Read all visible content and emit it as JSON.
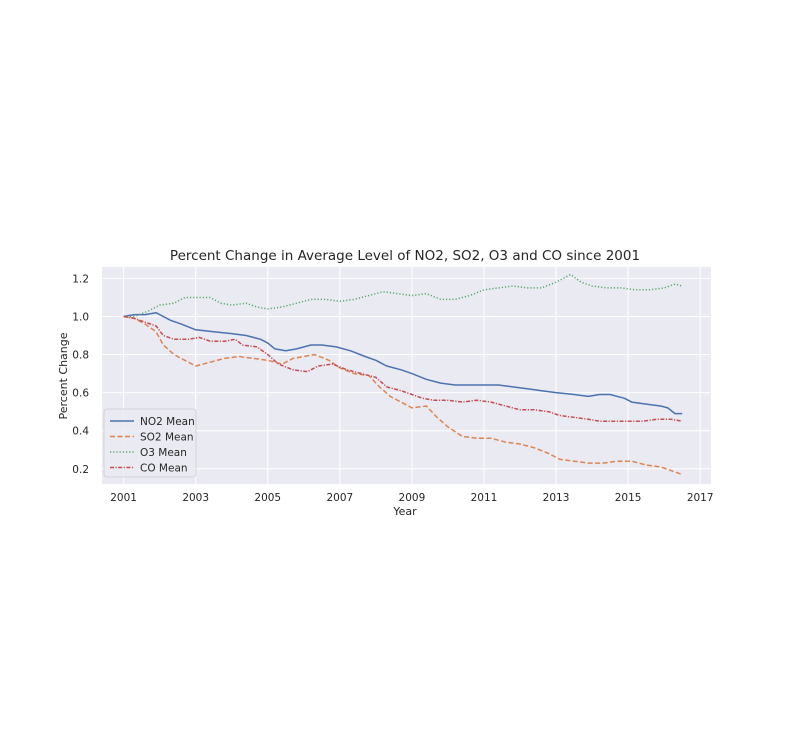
{
  "chart_data": {
    "type": "line",
    "title": "Percent Change in Average Level of NO2, SO2, O3 and CO since 2001",
    "xlabel": "Year",
    "ylabel": "Percent Change",
    "xlim": [
      2000.4,
      2017.3
    ],
    "ylim": [
      0.12,
      1.26
    ],
    "xticks": [
      "2001",
      "2003",
      "2005",
      "2007",
      "2009",
      "2011",
      "2013",
      "2015",
      "2017"
    ],
    "yticks": [
      "0.2",
      "0.4",
      "0.6",
      "0.8",
      "1.0",
      "1.2"
    ],
    "grid": true,
    "legend_position": "lower-left",
    "series": [
      {
        "name": "NO2 Mean",
        "color": "#4c72b0",
        "dash": "solid",
        "points": [
          [
            2001.0,
            1.0
          ],
          [
            2001.3,
            1.01
          ],
          [
            2001.6,
            1.01
          ],
          [
            2001.9,
            1.02
          ],
          [
            2002.1,
            1.0
          ],
          [
            2002.3,
            0.98
          ],
          [
            2002.6,
            0.96
          ],
          [
            2003.0,
            0.93
          ],
          [
            2003.5,
            0.92
          ],
          [
            2004.0,
            0.91
          ],
          [
            2004.4,
            0.9
          ],
          [
            2004.8,
            0.88
          ],
          [
            2005.0,
            0.86
          ],
          [
            2005.2,
            0.83
          ],
          [
            2005.5,
            0.82
          ],
          [
            2005.8,
            0.83
          ],
          [
            2006.2,
            0.85
          ],
          [
            2006.5,
            0.85
          ],
          [
            2006.9,
            0.84
          ],
          [
            2007.3,
            0.82
          ],
          [
            2007.7,
            0.79
          ],
          [
            2008.0,
            0.77
          ],
          [
            2008.3,
            0.74
          ],
          [
            2008.7,
            0.72
          ],
          [
            2009.0,
            0.7
          ],
          [
            2009.4,
            0.67
          ],
          [
            2009.8,
            0.65
          ],
          [
            2010.2,
            0.64
          ],
          [
            2010.6,
            0.64
          ],
          [
            2011.0,
            0.64
          ],
          [
            2011.4,
            0.64
          ],
          [
            2011.8,
            0.63
          ],
          [
            2012.2,
            0.62
          ],
          [
            2012.6,
            0.61
          ],
          [
            2013.0,
            0.6
          ],
          [
            2013.5,
            0.59
          ],
          [
            2013.9,
            0.58
          ],
          [
            2014.2,
            0.59
          ],
          [
            2014.5,
            0.59
          ],
          [
            2014.9,
            0.57
          ],
          [
            2015.1,
            0.55
          ],
          [
            2015.5,
            0.54
          ],
          [
            2015.9,
            0.53
          ],
          [
            2016.1,
            0.52
          ],
          [
            2016.3,
            0.49
          ],
          [
            2016.5,
            0.49
          ]
        ]
      },
      {
        "name": "SO2 Mean",
        "color": "#dd8452",
        "dash": "dashed",
        "points": [
          [
            2001.0,
            1.0
          ],
          [
            2001.3,
            0.99
          ],
          [
            2001.6,
            0.96
          ],
          [
            2001.9,
            0.92
          ],
          [
            2002.1,
            0.85
          ],
          [
            2002.4,
            0.8
          ],
          [
            2002.7,
            0.77
          ],
          [
            2003.0,
            0.74
          ],
          [
            2003.4,
            0.76
          ],
          [
            2003.8,
            0.78
          ],
          [
            2004.2,
            0.79
          ],
          [
            2004.6,
            0.78
          ],
          [
            2005.0,
            0.77
          ],
          [
            2005.4,
            0.75
          ],
          [
            2005.7,
            0.78
          ],
          [
            2006.0,
            0.79
          ],
          [
            2006.3,
            0.8
          ],
          [
            2006.7,
            0.77
          ],
          [
            2007.0,
            0.73
          ],
          [
            2007.4,
            0.7
          ],
          [
            2007.8,
            0.69
          ],
          [
            2008.1,
            0.63
          ],
          [
            2008.4,
            0.58
          ],
          [
            2008.7,
            0.55
          ],
          [
            2009.0,
            0.52
          ],
          [
            2009.4,
            0.53
          ],
          [
            2009.7,
            0.47
          ],
          [
            2010.0,
            0.42
          ],
          [
            2010.4,
            0.37
          ],
          [
            2010.8,
            0.36
          ],
          [
            2011.2,
            0.36
          ],
          [
            2011.6,
            0.34
          ],
          [
            2012.0,
            0.33
          ],
          [
            2012.4,
            0.31
          ],
          [
            2012.8,
            0.28
          ],
          [
            2013.1,
            0.25
          ],
          [
            2013.5,
            0.24
          ],
          [
            2013.9,
            0.23
          ],
          [
            2014.3,
            0.23
          ],
          [
            2014.7,
            0.24
          ],
          [
            2015.1,
            0.24
          ],
          [
            2015.5,
            0.22
          ],
          [
            2015.9,
            0.21
          ],
          [
            2016.2,
            0.19
          ],
          [
            2016.5,
            0.17
          ]
        ]
      },
      {
        "name": "O3 Mean",
        "color": "#55a868",
        "dash": "dotted",
        "points": [
          [
            2001.0,
            1.0
          ],
          [
            2001.3,
            1.0
          ],
          [
            2001.7,
            1.03
          ],
          [
            2002.0,
            1.06
          ],
          [
            2002.4,
            1.07
          ],
          [
            2002.7,
            1.1
          ],
          [
            2003.0,
            1.1
          ],
          [
            2003.4,
            1.1
          ],
          [
            2003.7,
            1.07
          ],
          [
            2004.0,
            1.06
          ],
          [
            2004.4,
            1.07
          ],
          [
            2004.7,
            1.05
          ],
          [
            2005.0,
            1.04
          ],
          [
            2005.4,
            1.05
          ],
          [
            2005.8,
            1.07
          ],
          [
            2006.2,
            1.09
          ],
          [
            2006.6,
            1.09
          ],
          [
            2007.0,
            1.08
          ],
          [
            2007.4,
            1.09
          ],
          [
            2007.8,
            1.11
          ],
          [
            2008.2,
            1.13
          ],
          [
            2008.6,
            1.12
          ],
          [
            2009.0,
            1.11
          ],
          [
            2009.4,
            1.12
          ],
          [
            2009.8,
            1.09
          ],
          [
            2010.2,
            1.09
          ],
          [
            2010.6,
            1.11
          ],
          [
            2011.0,
            1.14
          ],
          [
            2011.4,
            1.15
          ],
          [
            2011.8,
            1.16
          ],
          [
            2012.2,
            1.15
          ],
          [
            2012.6,
            1.15
          ],
          [
            2013.0,
            1.18
          ],
          [
            2013.2,
            1.2
          ],
          [
            2013.4,
            1.22
          ],
          [
            2013.7,
            1.18
          ],
          [
            2014.0,
            1.16
          ],
          [
            2014.4,
            1.15
          ],
          [
            2014.8,
            1.15
          ],
          [
            2015.2,
            1.14
          ],
          [
            2015.6,
            1.14
          ],
          [
            2016.0,
            1.15
          ],
          [
            2016.3,
            1.17
          ],
          [
            2016.5,
            1.16
          ]
        ]
      },
      {
        "name": "CO Mean",
        "color": "#c44e52",
        "dash": "dashdot",
        "points": [
          [
            2001.0,
            1.0
          ],
          [
            2001.3,
            0.99
          ],
          [
            2001.6,
            0.97
          ],
          [
            2001.9,
            0.95
          ],
          [
            2002.1,
            0.9
          ],
          [
            2002.4,
            0.88
          ],
          [
            2002.8,
            0.88
          ],
          [
            2003.1,
            0.89
          ],
          [
            2003.4,
            0.87
          ],
          [
            2003.8,
            0.87
          ],
          [
            2004.1,
            0.88
          ],
          [
            2004.3,
            0.85
          ],
          [
            2004.7,
            0.84
          ],
          [
            2005.0,
            0.8
          ],
          [
            2005.3,
            0.75
          ],
          [
            2005.7,
            0.72
          ],
          [
            2006.1,
            0.71
          ],
          [
            2006.4,
            0.74
          ],
          [
            2006.8,
            0.75
          ],
          [
            2007.2,
            0.72
          ],
          [
            2007.6,
            0.7
          ],
          [
            2008.0,
            0.68
          ],
          [
            2008.3,
            0.63
          ],
          [
            2008.7,
            0.61
          ],
          [
            2009.0,
            0.59
          ],
          [
            2009.3,
            0.57
          ],
          [
            2009.6,
            0.56
          ],
          [
            2010.0,
            0.56
          ],
          [
            2010.4,
            0.55
          ],
          [
            2010.8,
            0.56
          ],
          [
            2011.2,
            0.55
          ],
          [
            2011.6,
            0.53
          ],
          [
            2012.0,
            0.51
          ],
          [
            2012.4,
            0.51
          ],
          [
            2012.8,
            0.5
          ],
          [
            2013.1,
            0.48
          ],
          [
            2013.5,
            0.47
          ],
          [
            2013.9,
            0.46
          ],
          [
            2014.2,
            0.45
          ],
          [
            2014.6,
            0.45
          ],
          [
            2015.0,
            0.45
          ],
          [
            2015.4,
            0.45
          ],
          [
            2015.8,
            0.46
          ],
          [
            2016.2,
            0.46
          ],
          [
            2016.5,
            0.45
          ]
        ]
      }
    ]
  }
}
